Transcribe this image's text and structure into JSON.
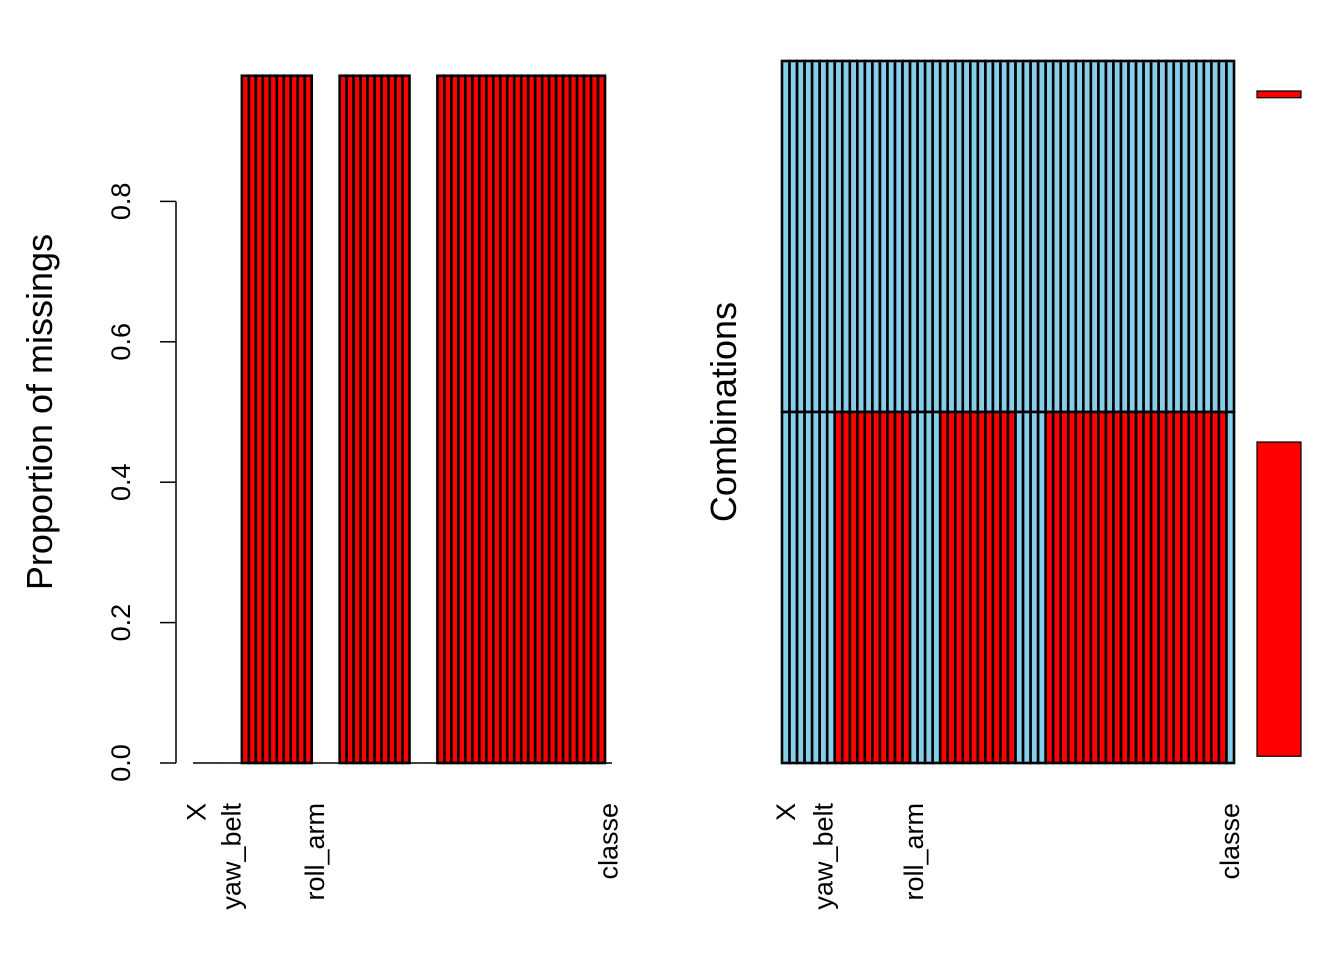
{
  "chart_data": [
    {
      "type": "bar",
      "title": "",
      "ylabel": "Proportion of missings",
      "xlabel": "",
      "ylim": [
        0,
        1
      ],
      "yticks": [
        "0.0",
        "0.2",
        "0.4",
        "0.6",
        "0.8"
      ],
      "ytick_values": [
        0.0,
        0.2,
        0.4,
        0.6,
        0.8
      ],
      "shown_xtick_labels": [
        "X",
        "yaw_belt",
        "roll_arm",
        "classe"
      ],
      "shown_xtick_positions": [
        1,
        6,
        18,
        60
      ],
      "n_variables": 60,
      "missing_variable_indices": [
        8,
        9,
        10,
        11,
        12,
        13,
        14,
        15,
        16,
        17,
        22,
        23,
        24,
        25,
        26,
        27,
        28,
        29,
        30,
        31,
        36,
        37,
        38,
        39,
        40,
        41,
        42,
        43,
        44,
        45,
        46,
        47,
        48,
        49,
        50,
        51,
        52,
        53,
        54,
        55,
        56,
        57,
        58,
        59
      ],
      "missing_proportion": 0.979,
      "bar_color": "#ff0000",
      "bar_border_color": "#000000"
    },
    {
      "type": "heatmap",
      "title": "",
      "ylabel": "Combinations",
      "shown_xtick_labels": [
        "X",
        "yaw_belt",
        "roll_arm",
        "classe"
      ],
      "shown_xtick_positions": [
        1,
        6,
        18,
        60
      ],
      "n_variables": 60,
      "rows": [
        {
          "pattern": "complete",
          "missing_variable_indices": []
        },
        {
          "pattern": "missing",
          "missing_variable_indices": [
            8,
            9,
            10,
            11,
            12,
            13,
            14,
            15,
            16,
            17,
            22,
            23,
            24,
            25,
            26,
            27,
            28,
            29,
            30,
            31,
            36,
            37,
            38,
            39,
            40,
            41,
            42,
            43,
            44,
            45,
            46,
            47,
            48,
            49,
            50,
            51,
            52,
            53,
            54,
            55,
            56,
            57,
            58,
            59
          ]
        }
      ],
      "row_proportions": [
        0.021,
        0.979
      ],
      "observed_color": "#87ceeb",
      "missing_color": "#ff0000"
    }
  ]
}
